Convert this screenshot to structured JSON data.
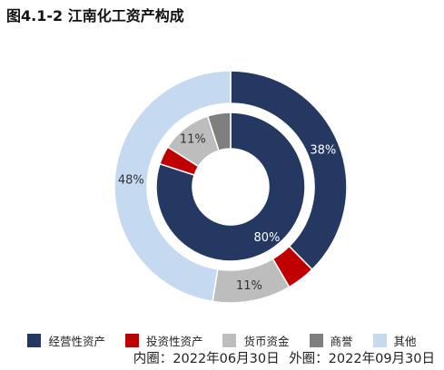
{
  "title": "图4.1-2 江南化工资产构成",
  "caption": {
    "inner": "内圈：2022年06月30日",
    "outer": "外圈：2022年09月30日"
  },
  "chart_data": {
    "type": "pie",
    "subtype": "double-donut",
    "categories": [
      "经营性资产",
      "投资性资产",
      "货币资金",
      "商誉",
      "其他"
    ],
    "colors": [
      "#243862",
      "#c00000",
      "#bdbdbd",
      "#7f7f7f",
      "#c5d9f1"
    ],
    "series": [
      {
        "ring": "inner",
        "values": [
          80,
          4,
          11,
          5,
          0
        ],
        "labels": [
          "80%",
          "",
          "11%",
          "",
          ""
        ]
      },
      {
        "ring": "outer",
        "values": [
          38,
          4,
          11,
          0,
          48
        ],
        "labels": [
          "38%",
          "",
          "11%",
          "",
          "48%"
        ]
      }
    ],
    "legend_position": "bottom"
  }
}
